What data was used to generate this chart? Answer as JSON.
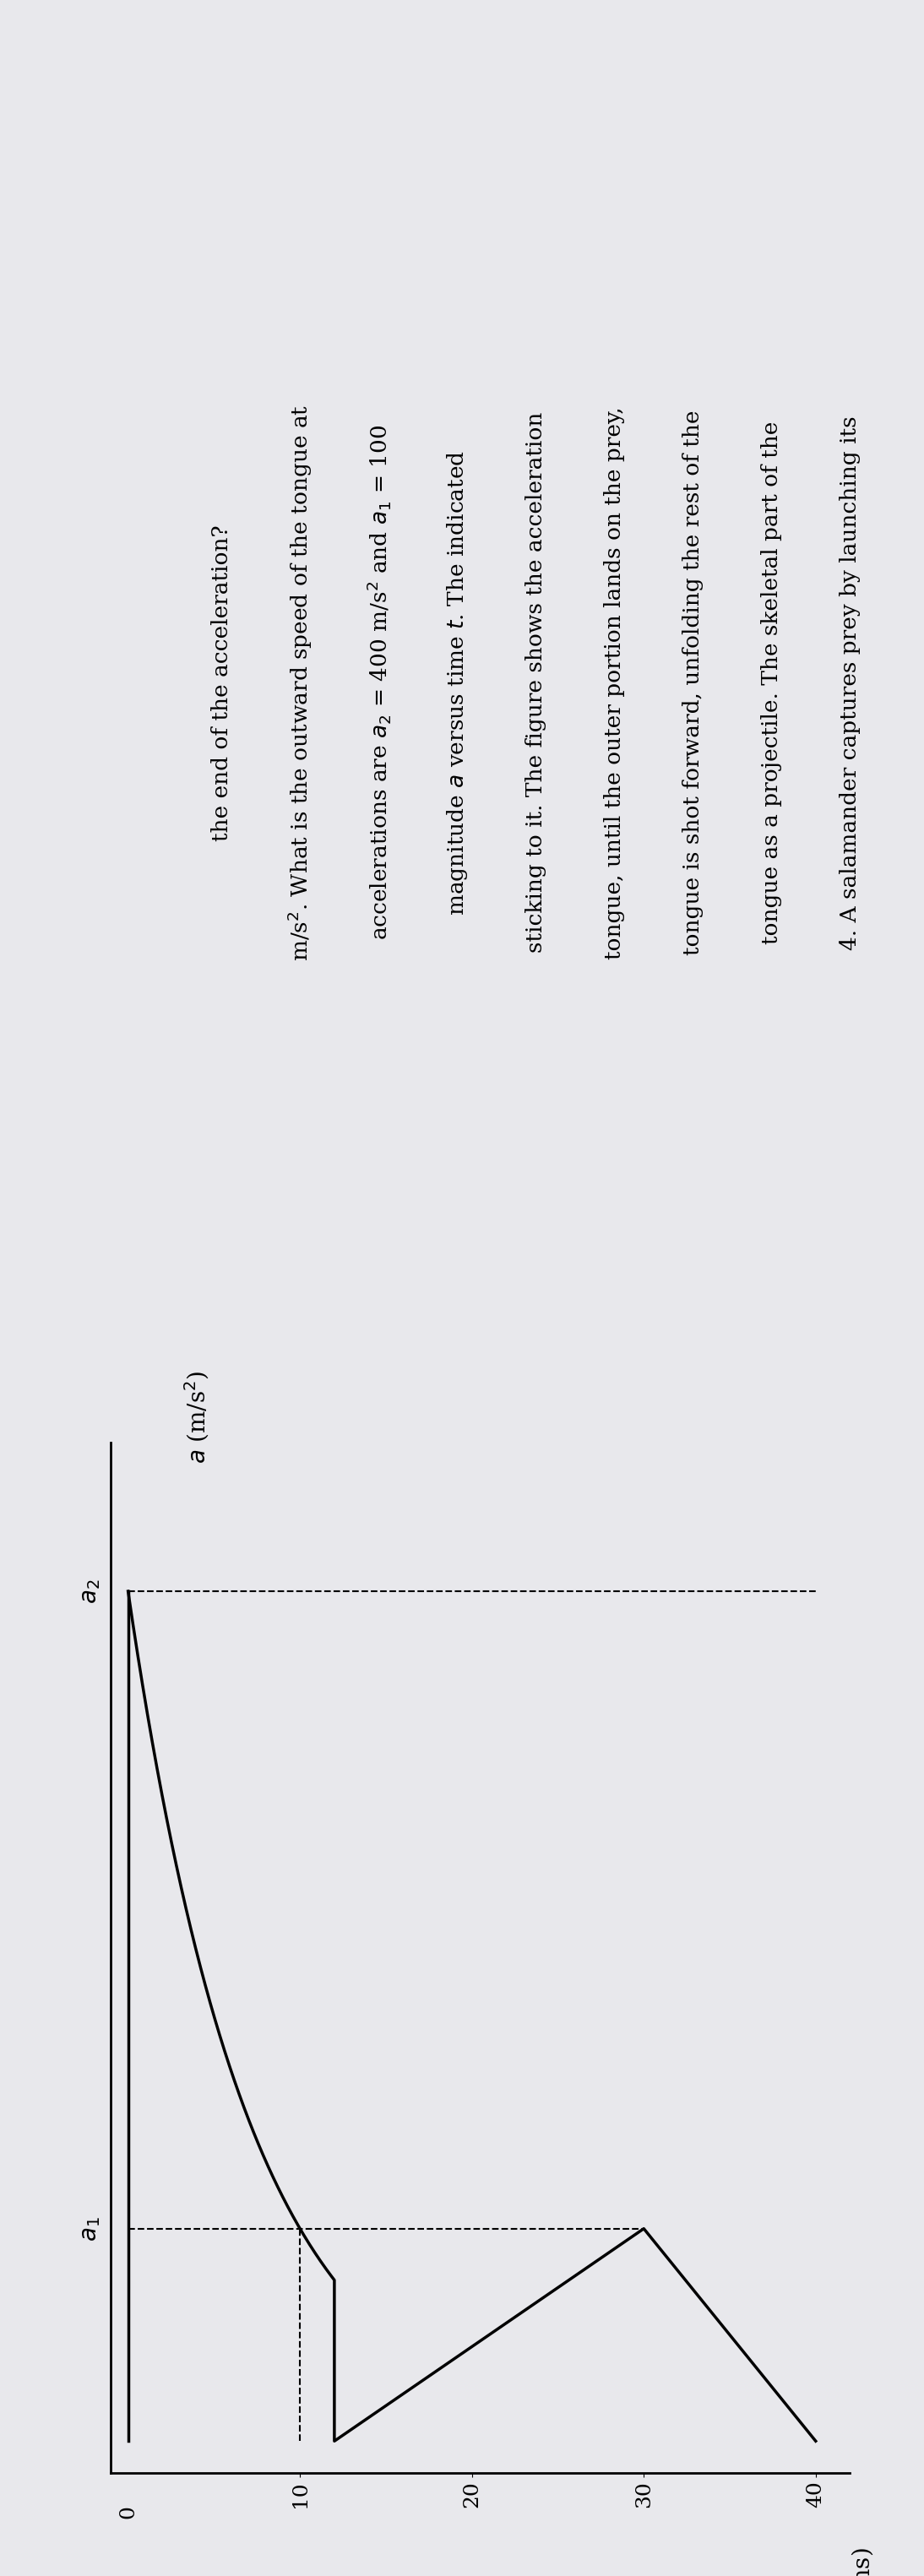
{
  "a2": 400,
  "a1": 100,
  "background_color": "#e8e8ec",
  "line_color": "black",
  "dashed_color": "black",
  "tick_fontsize": 18,
  "label_fontsize": 20,
  "text_fontsize": 19,
  "fig_width": 10.94,
  "fig_height": 30.5,
  "text_content": "4. A salamander captures prey by launching its\ntongue as a projectile. The skeletal part of the\ntongue is shot forward, unfolding the rest of the\ntongue, until the outer portion lands on the prey,\nsticking to it. The figure shows the acceleration\nmagnitude a versus time t. The indicated\naccelerations are a2 = 400 m/s² and a1 = 100\nm/s². What is the outward speed of the tongue at\nthe end of the acceleration?"
}
